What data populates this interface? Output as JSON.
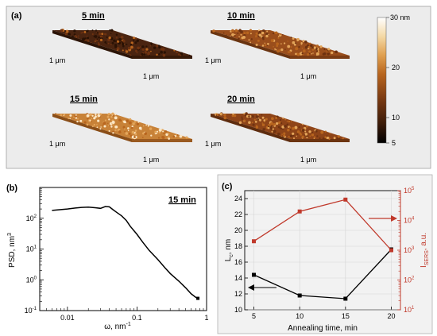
{
  "panel_a": {
    "label": "(a)",
    "colorbar": {
      "max_label": "30 nm",
      "tick_20": "20",
      "tick_10": "10",
      "min_label": "5",
      "colors": [
        "#000000",
        "#3a1a08",
        "#7a3a12",
        "#b8651e",
        "#e0a050",
        "#f4d9a6",
        "#ffffff"
      ]
    },
    "images": [
      {
        "title": "5 min",
        "y_axis": "1 μm",
        "x_axis": "1 μm",
        "brightness": 0.25
      },
      {
        "title": "10 min",
        "y_axis": "1 μm",
        "x_axis": "1 μm",
        "brightness": 0.55
      },
      {
        "title": "15 min",
        "y_axis": "1 μm",
        "x_axis": "1 μm",
        "brightness": 0.75
      },
      {
        "title": "20 min",
        "y_axis": "1 μm",
        "x_axis": "1 μm",
        "brightness": 0.5
      }
    ]
  },
  "panel_b": {
    "label": "(b)",
    "annotation": "15 min",
    "ylabel": "PSD, nm",
    "ylabel_sup": "3",
    "xlabel": "ω, nm",
    "xlabel_sup": "-1",
    "x_ticks": [
      "0.01",
      "0.1",
      "1"
    ],
    "y_ticks": [
      {
        "base": "10",
        "exp": "-1"
      },
      {
        "base": "10",
        "exp": "0"
      },
      {
        "base": "10",
        "exp": "1"
      },
      {
        "base": "10",
        "exp": "2"
      }
    ]
  },
  "panel_c": {
    "label": "(c)",
    "xlabel": "Annealing time, min",
    "ylabel_left": "L",
    "ylabel_left_sub": "c",
    "ylabel_left_unit": ", nm",
    "ylabel_right": "I",
    "ylabel_right_sub": "SERS",
    "ylabel_right_unit": ", a.u.",
    "x_ticks": [
      "5",
      "10",
      "15",
      "20"
    ],
    "y_left_ticks": [
      "10",
      "12",
      "14",
      "16",
      "18",
      "20",
      "22",
      "24"
    ],
    "y_right_ticks": [
      {
        "base": "10",
        "exp": "1"
      },
      {
        "base": "10",
        "exp": "2"
      },
      {
        "base": "10",
        "exp": "3"
      },
      {
        "base": "10",
        "exp": "4"
      },
      {
        "base": "10",
        "exp": "5"
      }
    ],
    "colors": {
      "left": "#000000",
      "right": "#c0392b"
    }
  },
  "chart_data": [
    {
      "type": "line",
      "xscale": "log",
      "yscale": "log",
      "xlim": [
        0.004,
        1.0
      ],
      "ylim": [
        0.1,
        1000
      ],
      "xlabel": "ω, nm-1",
      "ylabel": "PSD, nm3",
      "series": [
        {
          "name": "15 min",
          "x": [
            0.006,
            0.008,
            0.01,
            0.013,
            0.016,
            0.02,
            0.025,
            0.03,
            0.035,
            0.04,
            0.045,
            0.05,
            0.06,
            0.07,
            0.08,
            0.1,
            0.12,
            0.15,
            0.2,
            0.25,
            0.3,
            0.4,
            0.5,
            0.6,
            0.7,
            0.75
          ],
          "y": [
            180,
            190,
            200,
            215,
            225,
            230,
            220,
            210,
            240,
            235,
            190,
            160,
            120,
            85,
            55,
            30,
            17,
            9,
            4.5,
            2.5,
            1.6,
            0.9,
            0.55,
            0.35,
            0.27,
            0.25
          ]
        }
      ]
    },
    {
      "type": "line",
      "x": [
        5,
        10,
        15,
        20
      ],
      "xlim": [
        4,
        21
      ],
      "xlabel": "Annealing time, min",
      "ylabel": "Lc, nm",
      "ylabel_right": "ISERS, a.u.",
      "ylim": [
        10,
        25
      ],
      "ylim_right": [
        10,
        100000
      ],
      "yscale_right": "log",
      "series": [
        {
          "axis": "left",
          "values": [
            14.4,
            11.8,
            11.4,
            17.6
          ]
        },
        {
          "axis": "right",
          "values": [
            2000,
            20000,
            50000,
            1000
          ]
        }
      ],
      "grid": true
    }
  ]
}
